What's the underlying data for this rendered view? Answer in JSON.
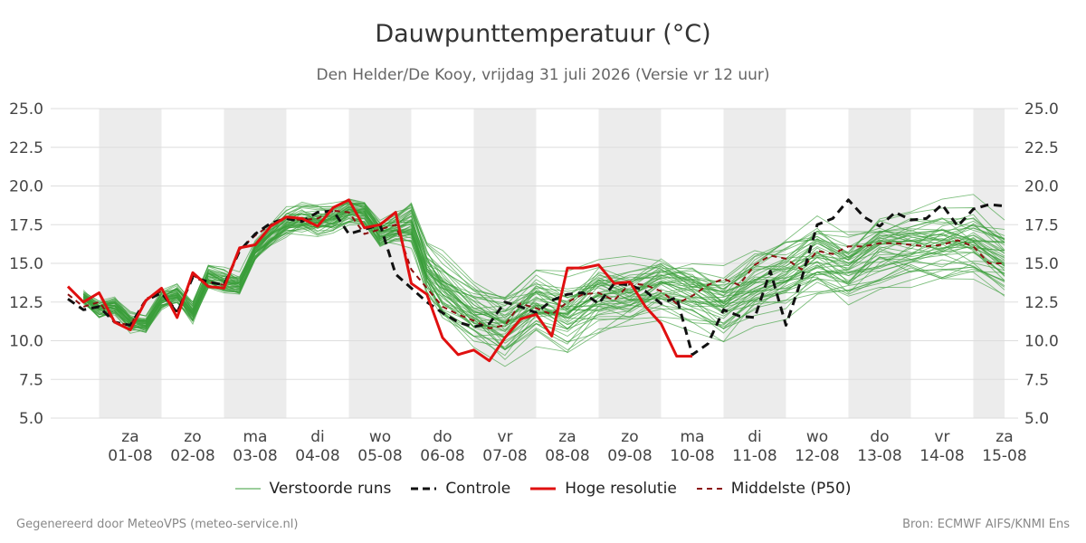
{
  "title": "Dauwpunttemperatuur (°C)",
  "subtitle": "Den Helder/De Kooy, vrijdag 31 juli 2026 (Versie vr 12 uur)",
  "footer": {
    "left": "Gegenereerd door MeteoVPS (meteo-service.nl)",
    "right": "Bron: ECMWF AIFS/KNMI Ens"
  },
  "colors": {
    "ensemble": "#3a9e3a",
    "control": "#111111",
    "hires": "#e01010",
    "median": "#8b1010",
    "band": "#ececec",
    "grid": "#dddddd"
  },
  "chart_data": {
    "type": "line",
    "ylim": [
      5.0,
      25.0
    ],
    "yticks": [
      "5.0",
      "7.5",
      "10.0",
      "12.5",
      "15.0",
      "17.5",
      "20.0",
      "22.5",
      "25.0"
    ],
    "xlim": [
      0.0,
      15.0
    ],
    "xticks": [
      {
        "day": "za",
        "date": "01-08",
        "x": 1.0
      },
      {
        "day": "zo",
        "date": "02-08",
        "x": 2.0
      },
      {
        "day": "ma",
        "date": "03-08",
        "x": 3.0
      },
      {
        "day": "di",
        "date": "04-08",
        "x": 4.0
      },
      {
        "day": "wo",
        "date": "05-08",
        "x": 5.0
      },
      {
        "day": "do",
        "date": "06-08",
        "x": 6.0
      },
      {
        "day": "vr",
        "date": "07-08",
        "x": 7.0
      },
      {
        "day": "za",
        "date": "08-08",
        "x": 8.0
      },
      {
        "day": "zo",
        "date": "09-08",
        "x": 9.0
      },
      {
        "day": "ma",
        "date": "10-08",
        "x": 10.0
      },
      {
        "day": "di",
        "date": "11-08",
        "x": 11.0
      },
      {
        "day": "wo",
        "date": "12-08",
        "x": 12.0
      },
      {
        "day": "do",
        "date": "13-08",
        "x": 13.0
      },
      {
        "day": "vr",
        "date": "14-08",
        "x": 14.0
      },
      {
        "day": "za",
        "date": "15-08",
        "x": 15.0
      }
    ],
    "weekend_bands": [
      [
        0.5,
        1.5
      ],
      [
        2.5,
        3.5
      ],
      [
        4.5,
        5.5
      ],
      [
        6.5,
        7.5
      ],
      [
        8.5,
        9.5
      ],
      [
        10.5,
        11.5
      ],
      [
        12.5,
        13.5
      ],
      [
        14.5,
        15.0
      ]
    ],
    "series": [
      {
        "name": "Verstoorde runs",
        "style": "thin-solid",
        "color": "#3a9e3a",
        "members": 50,
        "x": [
          0.25,
          0.5,
          0.75,
          1.0,
          1.25,
          1.5,
          1.75,
          2.0,
          2.25,
          2.5,
          2.75,
          3.0,
          3.25,
          3.5,
          3.75,
          4.0,
          4.25,
          4.5,
          4.75,
          5.0,
          5.25,
          5.5,
          5.75,
          6.0,
          6.5,
          7.0,
          7.5,
          8.0,
          8.5,
          9.0,
          9.5,
          10.0,
          10.5,
          11.0,
          11.5,
          12.0,
          12.5,
          13.0,
          13.5,
          14.0,
          14.5,
          15.0
        ],
        "spread": [
          0.6,
          0.8,
          0.8,
          0.9,
          0.8,
          0.9,
          0.9,
          1.0,
          1.0,
          1.0,
          0.9,
          0.9,
          1.0,
          1.2,
          1.3,
          1.3,
          1.2,
          1.1,
          1.0,
          1.1,
          1.3,
          1.8,
          2.1,
          2.5,
          2.9,
          3.0,
          3.1,
          3.0,
          3.0,
          2.8,
          2.7,
          2.8,
          2.9,
          2.9,
          3.0,
          3.0,
          3.0,
          3.0,
          3.0,
          3.1,
          3.2,
          3.2
        ],
        "center": [
          12.8,
          12.0,
          12.2,
          11.2,
          11.0,
          12.6,
          13.0,
          11.8,
          14.1,
          13.8,
          13.6,
          15.8,
          16.8,
          17.6,
          17.9,
          17.7,
          17.8,
          18.4,
          18.3,
          16.9,
          17.2,
          17.5,
          14.6,
          13.4,
          11.8,
          10.9,
          12.4,
          11.8,
          13.0,
          13.0,
          13.7,
          13.2,
          12.4,
          13.6,
          14.2,
          15.3,
          14.6,
          15.8,
          16.0,
          16.2,
          16.1,
          15.0
        ]
      },
      {
        "name": "Controle",
        "style": "dashed",
        "color": "#111111",
        "x": [
          0.0,
          0.25,
          0.5,
          0.75,
          1.0,
          1.25,
          1.5,
          1.75,
          2.0,
          2.25,
          2.5,
          2.75,
          3.0,
          3.25,
          3.5,
          3.75,
          4.0,
          4.25,
          4.5,
          4.75,
          5.0,
          5.25,
          5.5,
          5.75,
          6.0,
          6.25,
          6.5,
          6.75,
          7.0,
          7.25,
          7.5,
          7.75,
          8.0,
          8.25,
          8.5,
          8.75,
          9.0,
          9.25,
          9.5,
          9.75,
          10.0,
          10.25,
          10.5,
          10.75,
          11.0,
          11.25,
          11.5,
          11.75,
          12.0,
          12.25,
          12.5,
          12.75,
          13.0,
          13.25,
          13.5,
          13.75,
          14.0,
          14.25,
          14.5,
          14.75,
          15.0
        ],
        "values": [
          12.7,
          12.0,
          12.2,
          11.2,
          11.0,
          12.6,
          13.1,
          11.8,
          14.1,
          13.8,
          13.6,
          15.8,
          16.9,
          17.6,
          17.9,
          17.7,
          18.3,
          18.4,
          16.9,
          17.2,
          17.5,
          14.3,
          13.4,
          12.5,
          11.8,
          11.2,
          10.9,
          11.1,
          12.5,
          12.2,
          11.8,
          12.6,
          13.0,
          13.1,
          12.4,
          13.7,
          13.6,
          13.2,
          12.4,
          12.8,
          9.1,
          9.8,
          12.0,
          11.6,
          11.5,
          14.5,
          11.0,
          14.0,
          17.5,
          17.9,
          19.1,
          18.0,
          17.4,
          18.3,
          17.8,
          17.9,
          18.8,
          17.4,
          18.5,
          18.8,
          18.7
        ]
      },
      {
        "name": "Hoge resolutie",
        "style": "thick-solid",
        "color": "#e01010",
        "x": [
          0.0,
          0.25,
          0.5,
          0.75,
          1.0,
          1.25,
          1.5,
          1.75,
          2.0,
          2.25,
          2.5,
          2.75,
          3.0,
          3.25,
          3.5,
          3.75,
          4.0,
          4.25,
          4.5,
          4.75,
          5.0,
          5.25,
          5.5,
          5.75,
          6.0,
          6.25,
          6.5,
          6.75,
          7.0,
          7.25,
          7.5,
          7.75,
          8.0,
          8.25,
          8.5,
          8.75,
          9.0,
          9.25,
          9.5,
          9.75,
          10.0
        ],
        "values": [
          13.5,
          12.5,
          13.1,
          11.2,
          10.7,
          12.6,
          13.4,
          11.5,
          14.4,
          13.5,
          13.4,
          16.0,
          16.2,
          17.4,
          18.0,
          17.9,
          17.4,
          18.6,
          19.1,
          17.3,
          17.5,
          18.3,
          13.7,
          13.0,
          10.2,
          9.1,
          9.4,
          8.7,
          10.2,
          11.4,
          11.7,
          10.3,
          14.7,
          14.7,
          14.9,
          13.7,
          13.8,
          12.2,
          11.1,
          9.0,
          9.0
        ]
      },
      {
        "name": "Middelste (P50)",
        "style": "dashed",
        "color": "#8b1010",
        "x": [
          0.0,
          0.25,
          0.5,
          0.75,
          1.0,
          1.25,
          1.5,
          1.75,
          2.0,
          2.25,
          2.5,
          2.75,
          3.0,
          3.25,
          3.5,
          3.75,
          4.0,
          4.25,
          4.5,
          4.75,
          5.0,
          5.25,
          5.5,
          5.75,
          6.0,
          6.25,
          6.5,
          6.75,
          7.0,
          7.25,
          7.5,
          7.75,
          8.0,
          8.25,
          8.5,
          8.75,
          9.0,
          9.25,
          9.5,
          9.75,
          10.0,
          10.25,
          10.5,
          10.75,
          11.0,
          11.25,
          11.5,
          11.75,
          12.0,
          12.25,
          12.5,
          12.75,
          13.0,
          13.25,
          13.5,
          13.75,
          14.0,
          14.25,
          14.5,
          14.75,
          15.0
        ],
        "values": [
          13.0,
          12.2,
          12.5,
          11.2,
          11.0,
          12.7,
          13.2,
          11.9,
          14.2,
          13.8,
          13.6,
          15.9,
          16.8,
          17.5,
          17.9,
          17.8,
          17.9,
          18.4,
          18.3,
          16.9,
          17.2,
          17.5,
          14.6,
          13.4,
          12.2,
          11.7,
          11.3,
          10.8,
          11.0,
          12.4,
          12.1,
          11.7,
          12.5,
          13.0,
          13.1,
          12.6,
          13.7,
          13.6,
          13.2,
          12.4,
          12.9,
          13.6,
          14.0,
          13.6,
          14.9,
          15.5,
          15.3,
          14.6,
          15.8,
          15.6,
          16.1,
          16.1,
          16.3,
          16.3,
          16.2,
          16.1,
          16.2,
          16.5,
          16.1,
          15.0,
          15.0
        ]
      }
    ],
    "legend": [
      {
        "label": "Verstoorde runs",
        "style": "thin-solid",
        "color": "#3a9e3a"
      },
      {
        "label": "Controle",
        "style": "dashed",
        "color": "#111111"
      },
      {
        "label": "Hoge resolutie",
        "style": "thick-solid",
        "color": "#e01010"
      },
      {
        "label": "Middelste (P50)",
        "style": "dashed",
        "color": "#8b1010"
      }
    ],
    "legend_position": "bottom-center",
    "grid": true
  }
}
